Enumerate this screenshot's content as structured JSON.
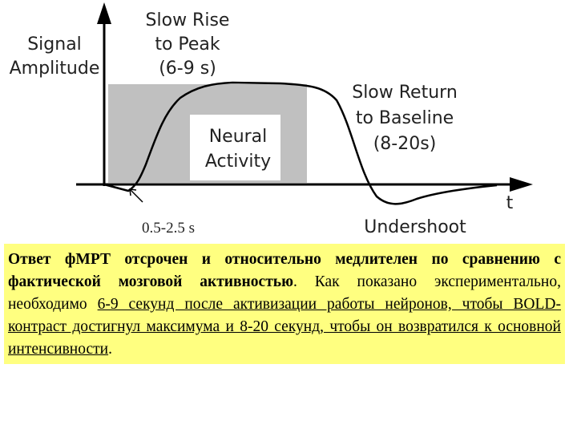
{
  "diagram": {
    "y_axis_label": [
      "Signal",
      "Amplitude"
    ],
    "rise_label": [
      "Slow Rise",
      "to Peak",
      "(6-9 s)"
    ],
    "neural_label": [
      "Neural",
      "Activity"
    ],
    "return_label": [
      "Slow Return",
      "to Baseline",
      "(8-20s)"
    ],
    "x_axis_label": "t",
    "delay_label": "0.5-2.5 s",
    "undershoot_label": "Undershoot"
  },
  "paragraph": {
    "bold": "Ответ фМРТ отсрочен и относительно медлителен по сравнению с фактической мозговой активностью",
    "plain": ". Как показано экспериментально, необходимо ",
    "underlined": "6-9 секунд после активизации работы нейронов, чтобы BOLD-контраст достигнул максимума и 8-20 секунд, чтобы он возвратился к основной интенсивности",
    "end": "."
  }
}
